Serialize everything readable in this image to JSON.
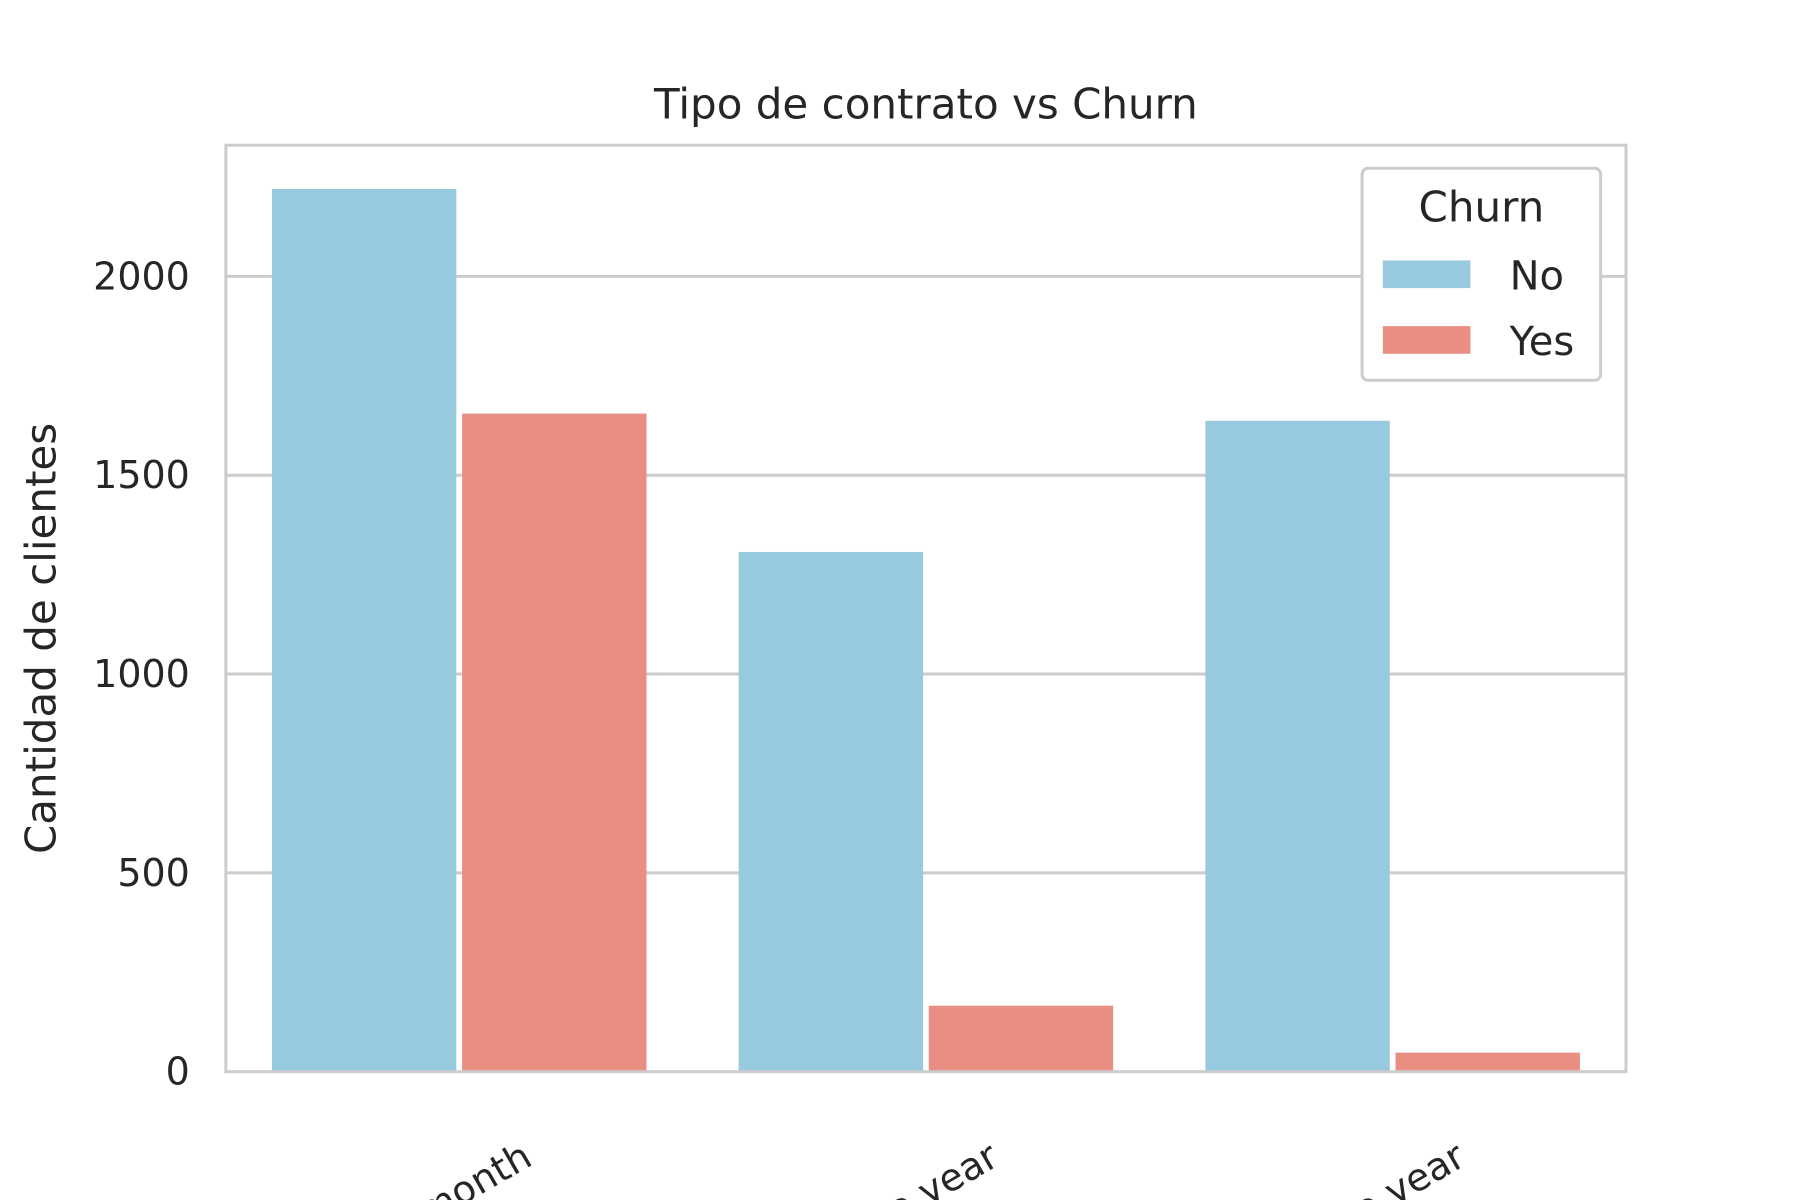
{
  "chart_data": {
    "type": "bar",
    "title": "Tipo de contrato vs Churn",
    "xlabel": "",
    "ylabel": "Cantidad de clientes",
    "categories": [
      "Month-to-month",
      "One year",
      "Two year"
    ],
    "category_labels_visible": [
      "to-month",
      "One year",
      "Two year"
    ],
    "series": [
      {
        "name": "No",
        "color": "#97c9df",
        "values": [
          2220,
          1307,
          1637
        ]
      },
      {
        "name": "Yes",
        "color": "#e98e83",
        "values": [
          1655,
          166,
          48
        ]
      }
    ],
    "yticks": [
      "0",
      "500",
      "1000",
      "1500",
      "2000"
    ],
    "ylim": [
      0,
      2330
    ],
    "grid": "horizontal",
    "legend": {
      "title": "Churn",
      "placement": "top-right"
    }
  }
}
